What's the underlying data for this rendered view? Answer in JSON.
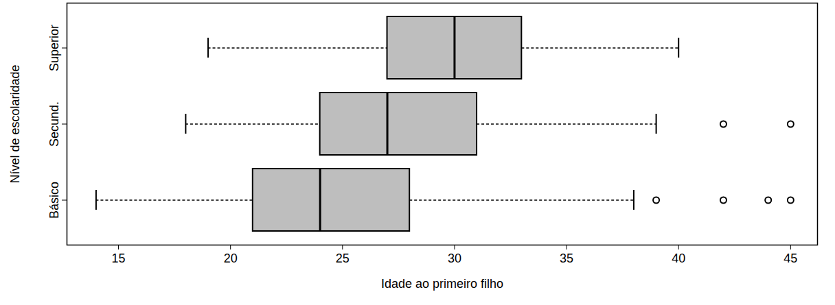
{
  "chart_data": {
    "type": "box",
    "orientation": "horizontal",
    "xlabel": "Idade ao primeiro filho",
    "ylabel": "Nível de escolaridade",
    "categories": [
      "Básico",
      "Secund.",
      "Superior"
    ],
    "whisker_low": [
      14,
      18,
      19
    ],
    "q1": [
      21,
      24,
      27
    ],
    "median": [
      24,
      27,
      30
    ],
    "q3": [
      28,
      31,
      33
    ],
    "whisker_high": [
      38,
      39,
      40
    ],
    "outliers": [
      [
        39,
        42,
        44,
        45
      ],
      [
        42,
        45
      ],
      []
    ],
    "color": "#bebebe",
    "xlim": [
      12.7,
      46.2
    ],
    "xticks": [
      15,
      20,
      25,
      30,
      35,
      40,
      45
    ],
    "grid": false
  }
}
